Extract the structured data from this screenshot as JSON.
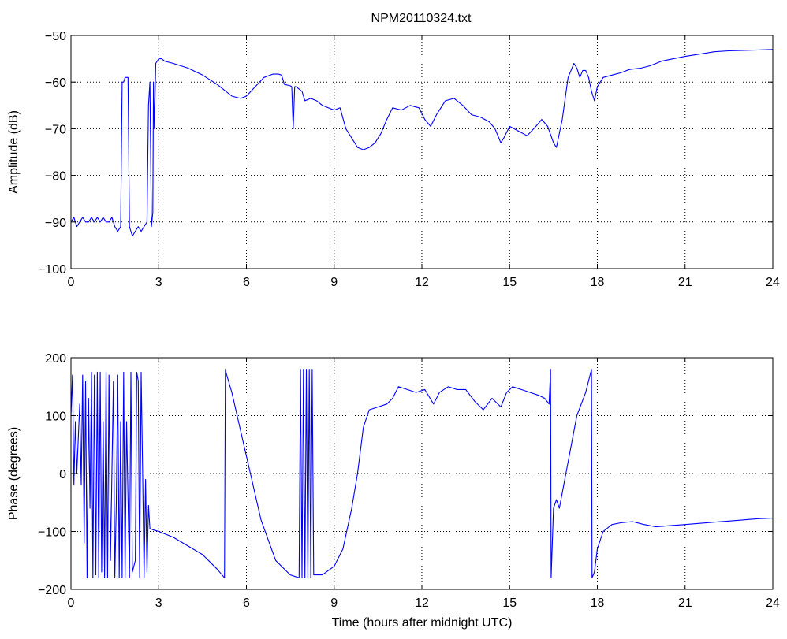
{
  "figure": {
    "title": "NPM20110324.txt",
    "colors": {
      "line": "#0000ff",
      "axis": "#000000",
      "grid": "#000000",
      "background": "#ffffff"
    }
  },
  "chart_data": [
    {
      "type": "line",
      "title": "NPM20110324.txt",
      "xlabel": "",
      "ylabel": "Amplitude (dB)",
      "xlim": [
        0,
        24
      ],
      "ylim": [
        -100,
        -50
      ],
      "xticks": [
        0,
        3,
        6,
        9,
        12,
        15,
        18,
        21,
        24
      ],
      "yticks": [
        -100,
        -90,
        -80,
        -70,
        -60,
        -50
      ],
      "grid": true,
      "series": [
        {
          "points": [
            [
              0.0,
              -90
            ],
            [
              0.1,
              -89
            ],
            [
              0.2,
              -91
            ],
            [
              0.3,
              -90
            ],
            [
              0.4,
              -89
            ],
            [
              0.5,
              -90
            ],
            [
              0.6,
              -90
            ],
            [
              0.7,
              -89
            ],
            [
              0.8,
              -90
            ],
            [
              0.9,
              -89
            ],
            [
              1.0,
              -90
            ],
            [
              1.1,
              -89
            ],
            [
              1.2,
              -90
            ],
            [
              1.3,
              -90
            ],
            [
              1.4,
              -89
            ],
            [
              1.5,
              -91
            ],
            [
              1.6,
              -92
            ],
            [
              1.7,
              -91
            ],
            [
              1.75,
              -60
            ],
            [
              1.8,
              -60
            ],
            [
              1.85,
              -59
            ],
            [
              1.9,
              -59
            ],
            [
              1.95,
              -59
            ],
            [
              2.0,
              -91
            ],
            [
              2.05,
              -92
            ],
            [
              2.1,
              -93
            ],
            [
              2.2,
              -92
            ],
            [
              2.3,
              -91
            ],
            [
              2.4,
              -92
            ],
            [
              2.5,
              -91
            ],
            [
              2.6,
              -90
            ],
            [
              2.65,
              -65
            ],
            [
              2.7,
              -60
            ],
            [
              2.75,
              -91
            ],
            [
              2.8,
              -88
            ],
            [
              2.82,
              -60
            ],
            [
              2.85,
              -70
            ],
            [
              2.9,
              -56
            ],
            [
              3.0,
              -55
            ],
            [
              3.1,
              -55
            ],
            [
              3.2,
              -55.5
            ],
            [
              3.5,
              -56
            ],
            [
              4.0,
              -57
            ],
            [
              4.5,
              -58.5
            ],
            [
              5.0,
              -60.5
            ],
            [
              5.5,
              -63
            ],
            [
              5.8,
              -63.5
            ],
            [
              6.0,
              -63
            ],
            [
              6.3,
              -61
            ],
            [
              6.6,
              -59
            ],
            [
              6.9,
              -58.3
            ],
            [
              7.1,
              -58.3
            ],
            [
              7.2,
              -58.5
            ],
            [
              7.3,
              -60.5
            ],
            [
              7.5,
              -60.8
            ],
            [
              7.55,
              -61
            ],
            [
              7.6,
              -70
            ],
            [
              7.65,
              -61
            ],
            [
              7.7,
              -61
            ],
            [
              7.9,
              -62
            ],
            [
              8.0,
              -64
            ],
            [
              8.2,
              -63.5
            ],
            [
              8.4,
              -64
            ],
            [
              8.6,
              -65
            ],
            [
              8.8,
              -65.5
            ],
            [
              9.0,
              -66
            ],
            [
              9.2,
              -65.5
            ],
            [
              9.4,
              -70
            ],
            [
              9.6,
              -72
            ],
            [
              9.8,
              -74
            ],
            [
              10.0,
              -74.5
            ],
            [
              10.2,
              -74
            ],
            [
              10.4,
              -73
            ],
            [
              10.6,
              -71
            ],
            [
              10.8,
              -68
            ],
            [
              11.0,
              -65.5
            ],
            [
              11.3,
              -66
            ],
            [
              11.6,
              -65
            ],
            [
              11.9,
              -65.5
            ],
            [
              12.1,
              -68
            ],
            [
              12.3,
              -69.5
            ],
            [
              12.5,
              -67
            ],
            [
              12.8,
              -64
            ],
            [
              13.1,
              -63.5
            ],
            [
              13.4,
              -65
            ],
            [
              13.7,
              -67
            ],
            [
              14.0,
              -67.5
            ],
            [
              14.3,
              -68.5
            ],
            [
              14.5,
              -70
            ],
            [
              14.7,
              -73
            ],
            [
              14.8,
              -72
            ],
            [
              15.0,
              -69.5
            ],
            [
              15.3,
              -70.5
            ],
            [
              15.6,
              -71.5
            ],
            [
              15.9,
              -69.5
            ],
            [
              16.1,
              -68
            ],
            [
              16.3,
              -69.5
            ],
            [
              16.5,
              -73
            ],
            [
              16.6,
              -74
            ],
            [
              16.8,
              -68
            ],
            [
              17.0,
              -59
            ],
            [
              17.2,
              -56
            ],
            [
              17.3,
              -57
            ],
            [
              17.4,
              -59
            ],
            [
              17.5,
              -57.5
            ],
            [
              17.6,
              -57.5
            ],
            [
              17.7,
              -59
            ],
            [
              17.8,
              -62
            ],
            [
              17.9,
              -64
            ],
            [
              18.0,
              -61
            ],
            [
              18.2,
              -59
            ],
            [
              18.5,
              -58.5
            ],
            [
              18.8,
              -58
            ],
            [
              19.1,
              -57.3
            ],
            [
              19.5,
              -57
            ],
            [
              19.8,
              -56.5
            ],
            [
              20.2,
              -55.5
            ],
            [
              20.6,
              -55
            ],
            [
              21.0,
              -54.5
            ],
            [
              21.5,
              -54
            ],
            [
              22.0,
              -53.5
            ],
            [
              22.5,
              -53.3
            ],
            [
              23.0,
              -53.2
            ],
            [
              23.5,
              -53.1
            ],
            [
              24.0,
              -53
            ]
          ]
        }
      ]
    },
    {
      "type": "line",
      "title": "",
      "xlabel": "Time (hours after midnight UTC)",
      "ylabel": "Phase (degrees)",
      "xlim": [
        0,
        24
      ],
      "ylim": [
        -200,
        200
      ],
      "xticks": [
        0,
        3,
        6,
        9,
        12,
        15,
        18,
        21,
        24
      ],
      "yticks": [
        -200,
        -100,
        0,
        100,
        200
      ],
      "grid": true,
      "series": [
        {
          "points": [
            [
              0.0,
              100
            ],
            [
              0.05,
              170
            ],
            [
              0.1,
              -20
            ],
            [
              0.15,
              90
            ],
            [
              0.2,
              0
            ],
            [
              0.3,
              120
            ],
            [
              0.35,
              -20
            ],
            [
              0.4,
              170
            ],
            [
              0.45,
              -120
            ],
            [
              0.5,
              160
            ],
            [
              0.55,
              -180
            ],
            [
              0.6,
              130
            ],
            [
              0.65,
              -60
            ],
            [
              0.7,
              175
            ],
            [
              0.75,
              -180
            ],
            [
              0.8,
              170
            ],
            [
              0.85,
              -175
            ],
            [
              0.9,
              175
            ],
            [
              0.95,
              -180
            ],
            [
              1.0,
              175
            ],
            [
              1.05,
              -170
            ],
            [
              1.1,
              90
            ],
            [
              1.15,
              -180
            ],
            [
              1.2,
              175
            ],
            [
              1.25,
              -180
            ],
            [
              1.3,
              170
            ],
            [
              1.35,
              -150
            ],
            [
              1.45,
              160
            ],
            [
              1.5,
              -180
            ],
            [
              1.55,
              -50
            ],
            [
              1.6,
              170
            ],
            [
              1.65,
              -180
            ],
            [
              1.7,
              90
            ],
            [
              1.75,
              -180
            ],
            [
              1.8,
              175
            ],
            [
              1.85,
              -180
            ],
            [
              1.9,
              90
            ],
            [
              2.0,
              -180
            ],
            [
              2.05,
              175
            ],
            [
              2.1,
              -170
            ],
            [
              2.2,
              -150
            ],
            [
              2.25,
              175
            ],
            [
              2.3,
              160
            ],
            [
              2.35,
              -180
            ],
            [
              2.4,
              175
            ],
            [
              2.45,
              0
            ],
            [
              2.5,
              -180
            ],
            [
              2.55,
              -10
            ],
            [
              2.6,
              -170
            ],
            [
              2.65,
              -55
            ],
            [
              2.7,
              -95
            ],
            [
              2.8,
              -97
            ],
            [
              3.0,
              -100
            ],
            [
              3.5,
              -110
            ],
            [
              4.0,
              -125
            ],
            [
              4.5,
              -140
            ],
            [
              5.0,
              -165
            ],
            [
              5.25,
              -180
            ],
            [
              5.28,
              180
            ],
            [
              5.3,
              175
            ],
            [
              5.5,
              140
            ],
            [
              6.0,
              30
            ],
            [
              6.5,
              -80
            ],
            [
              7.0,
              -150
            ],
            [
              7.5,
              -175
            ],
            [
              7.8,
              -180
            ],
            [
              7.85,
              180
            ],
            [
              7.9,
              -180
            ],
            [
              7.95,
              180
            ],
            [
              8.0,
              -180
            ],
            [
              8.05,
              180
            ],
            [
              8.1,
              -180
            ],
            [
              8.15,
              180
            ],
            [
              8.2,
              -180
            ],
            [
              8.25,
              180
            ],
            [
              8.3,
              -175
            ],
            [
              8.6,
              -175
            ],
            [
              9.0,
              -160
            ],
            [
              9.3,
              -130
            ],
            [
              9.6,
              -60
            ],
            [
              9.8,
              0
            ],
            [
              10.0,
              80
            ],
            [
              10.2,
              110
            ],
            [
              10.5,
              115
            ],
            [
              10.8,
              120
            ],
            [
              11.0,
              130
            ],
            [
              11.2,
              150
            ],
            [
              11.5,
              145
            ],
            [
              11.8,
              140
            ],
            [
              12.1,
              145
            ],
            [
              12.4,
              120
            ],
            [
              12.6,
              140
            ],
            [
              12.9,
              150
            ],
            [
              13.2,
              145
            ],
            [
              13.5,
              145
            ],
            [
              13.8,
              125
            ],
            [
              14.1,
              110
            ],
            [
              14.4,
              130
            ],
            [
              14.7,
              115
            ],
            [
              14.9,
              140
            ],
            [
              15.1,
              150
            ],
            [
              15.4,
              145
            ],
            [
              15.7,
              140
            ],
            [
              16.0,
              135
            ],
            [
              16.2,
              130
            ],
            [
              16.35,
              120
            ],
            [
              16.4,
              180
            ],
            [
              16.42,
              -180
            ],
            [
              16.5,
              -60
            ],
            [
              16.6,
              -45
            ],
            [
              16.7,
              -60
            ],
            [
              17.0,
              20
            ],
            [
              17.3,
              100
            ],
            [
              17.6,
              140
            ],
            [
              17.8,
              180
            ],
            [
              17.82,
              -180
            ],
            [
              17.9,
              -170
            ],
            [
              18.0,
              -130
            ],
            [
              18.2,
              -100
            ],
            [
              18.5,
              -88
            ],
            [
              18.8,
              -85
            ],
            [
              19.2,
              -83
            ],
            [
              19.6,
              -88
            ],
            [
              20.0,
              -92
            ],
            [
              20.5,
              -90
            ],
            [
              21.0,
              -88
            ],
            [
              21.5,
              -86
            ],
            [
              22.0,
              -84
            ],
            [
              22.5,
              -82
            ],
            [
              23.0,
              -80
            ],
            [
              23.5,
              -78
            ],
            [
              24.0,
              -77
            ]
          ]
        }
      ]
    }
  ]
}
